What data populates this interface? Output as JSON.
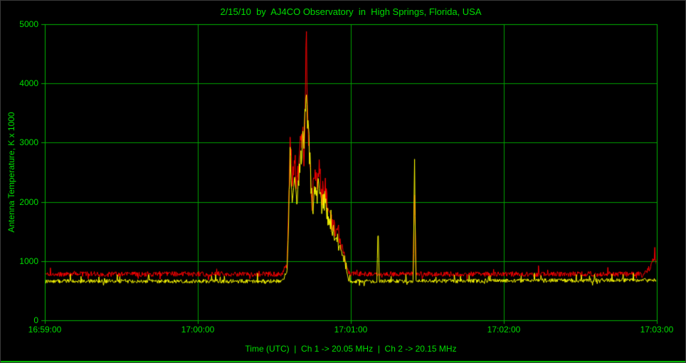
{
  "chart_data": {
    "type": "line",
    "title": "2/15/10  by  AJ4CO Observatory  in  High Springs, Florida, USA",
    "xlabel": "Time (UTC)  |  Ch 1 -> 20.05 MHz  |  Ch 2 -> 20.15 MHz",
    "ylabel": "Antenna Temperature, K x 1000",
    "x_ticks": [
      {
        "seconds": 0,
        "label": "16:59:00"
      },
      {
        "seconds": 60,
        "label": "17:00:00"
      },
      {
        "seconds": 120,
        "label": "17:01:00"
      },
      {
        "seconds": 180,
        "label": "17:02:00"
      },
      {
        "seconds": 240,
        "label": "17:03:00"
      }
    ],
    "y_ticks": [
      0,
      1000,
      2000,
      3000,
      4000,
      5000
    ],
    "ylim": [
      0,
      5000
    ],
    "xlim_seconds": [
      0,
      240
    ],
    "grid": true,
    "legend_position": "none",
    "colors": {
      "background": "#000000",
      "axis": "#00B400",
      "grid": "#00A000",
      "text": "#00DC00",
      "ch1": "#FF0000",
      "ch2": "#FFFF00"
    },
    "series": [
      {
        "name": "Ch 1 -> 20.05 MHz",
        "color": "#FF0000",
        "baseline": 780,
        "noise_frac": 0.055,
        "keypoints": [
          [
            0,
            780
          ],
          [
            93,
            780
          ],
          [
            95,
            950
          ],
          [
            96.2,
            3200
          ],
          [
            97,
            2150
          ],
          [
            98,
            2650
          ],
          [
            99,
            2250
          ],
          [
            100,
            2950
          ],
          [
            101,
            3150
          ],
          [
            101.8,
            2700
          ],
          [
            102.6,
            4580
          ],
          [
            103.3,
            3400
          ],
          [
            104,
            2500
          ],
          [
            104.8,
            1980
          ],
          [
            105.6,
            2450
          ],
          [
            106.6,
            2320
          ],
          [
            107.6,
            2480
          ],
          [
            108.6,
            2120
          ],
          [
            110,
            2200
          ],
          [
            111,
            1920
          ],
          [
            112,
            1720
          ],
          [
            113,
            1620
          ],
          [
            114,
            1520
          ],
          [
            115,
            1560
          ],
          [
            116,
            1320
          ],
          [
            117,
            1180
          ],
          [
            118,
            980
          ],
          [
            119,
            820
          ],
          [
            120,
            780
          ],
          [
            144.4,
            780
          ],
          [
            145,
            2130
          ],
          [
            145.6,
            780
          ],
          [
            235,
            780
          ],
          [
            237.5,
            900
          ],
          [
            239,
            1060
          ],
          [
            240,
            980
          ]
        ]
      },
      {
        "name": "Ch 2 -> 20.15 MHz",
        "color": "#FFFF00",
        "baseline": 660,
        "noise_frac": 0.05,
        "keypoints": [
          [
            0,
            660
          ],
          [
            93,
            660
          ],
          [
            95,
            820
          ],
          [
            96.2,
            2750
          ],
          [
            97,
            1900
          ],
          [
            98,
            2350
          ],
          [
            99,
            2000
          ],
          [
            100,
            2600
          ],
          [
            101,
            2900
          ],
          [
            102,
            3300
          ],
          [
            102.7,
            3700
          ],
          [
            103.5,
            3050
          ],
          [
            104.3,
            2350
          ],
          [
            105,
            1800
          ],
          [
            105.8,
            2200
          ],
          [
            106.6,
            2080
          ],
          [
            107.6,
            2280
          ],
          [
            108.6,
            1920
          ],
          [
            110,
            2020
          ],
          [
            111,
            1750
          ],
          [
            112,
            1580
          ],
          [
            113,
            1500
          ],
          [
            114,
            1400
          ],
          [
            115,
            1440
          ],
          [
            116,
            1180
          ],
          [
            117,
            1060
          ],
          [
            118,
            900
          ],
          [
            119,
            700
          ],
          [
            120,
            660
          ],
          [
            130.2,
            660
          ],
          [
            130.7,
            1510
          ],
          [
            131.2,
            660
          ],
          [
            144.5,
            660
          ],
          [
            145,
            2740
          ],
          [
            145.5,
            660
          ],
          [
            240,
            680
          ]
        ]
      }
    ]
  }
}
